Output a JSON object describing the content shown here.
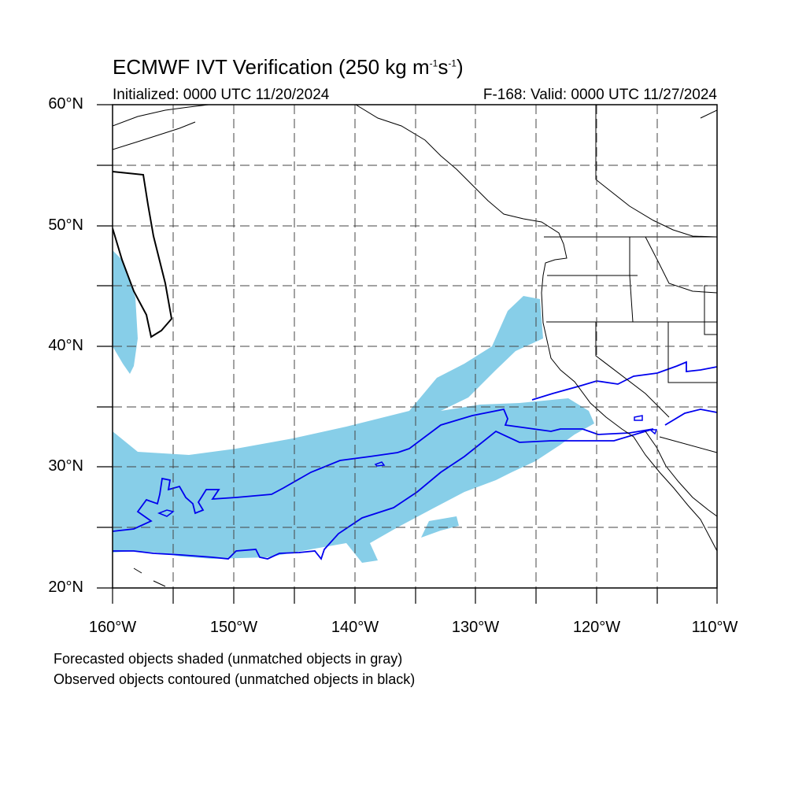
{
  "title": {
    "main": "ECMWF IVT Verification (250 kg m",
    "sup1": "-1",
    "s": "s",
    "sup2": "-1",
    "close": ")"
  },
  "subtitle": {
    "initialized": "Initialized: 0000 UTC 11/20/2024",
    "valid": "F-168: Valid: 0000 UTC 11/27/2024"
  },
  "axes": {
    "lat_labels": [
      "60°N",
      "50°N",
      "40°N",
      "30°N",
      "20°N"
    ],
    "lon_labels": [
      "160°W",
      "150°W",
      "140°W",
      "130°W",
      "120°W",
      "110°W"
    ],
    "lat_range": [
      20,
      60
    ],
    "lon_range": [
      -160,
      -110
    ],
    "grid": "dashed every 5°"
  },
  "legend": {
    "line1": "Forecasted objects shaded (unmatched objects in gray)",
    "line2": "Observed objects contoured (unmatched objects in black)"
  },
  "colors": {
    "forecast_fill": "#87cee8",
    "observed_contour": "#0000ee",
    "unmatched_contour": "#000000",
    "coastline": "#000000",
    "grid": "#444444"
  }
}
